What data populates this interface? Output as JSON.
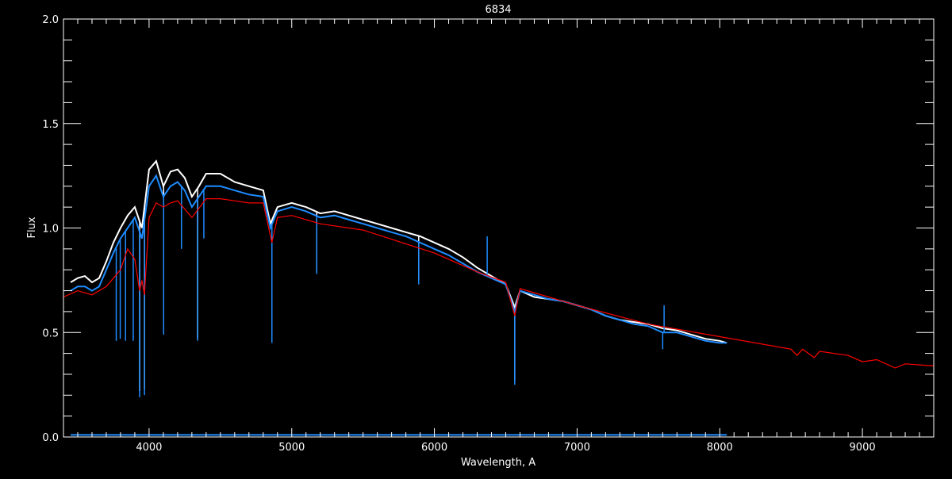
{
  "chart_data": {
    "type": "line",
    "title": "6834",
    "xlabel": "Wavelength, A",
    "ylabel": "Flux",
    "xlim": [
      3400,
      9500
    ],
    "ylim": [
      0.0,
      2.0
    ],
    "x_ticks": [
      4000,
      5000,
      6000,
      7000,
      8000,
      9000
    ],
    "x_tick_labels": [
      "4000",
      "5000",
      "6000",
      "7000",
      "8000",
      "9000"
    ],
    "y_ticks": [
      0.0,
      0.5,
      1.0,
      1.5,
      2.0
    ],
    "y_tick_labels": [
      "0.0",
      "0.5",
      "1.0",
      "1.5",
      "2.0"
    ],
    "grid": false,
    "background": "#000000",
    "series": [
      {
        "color": "#ffffff",
        "points": [
          [
            3450,
            0.74
          ],
          [
            3500,
            0.76
          ],
          [
            3550,
            0.77
          ],
          [
            3600,
            0.74
          ],
          [
            3650,
            0.76
          ],
          [
            3700,
            0.84
          ],
          [
            3750,
            0.93
          ],
          [
            3800,
            1.0
          ],
          [
            3850,
            1.06
          ],
          [
            3900,
            1.1
          ],
          [
            3950,
            1.0
          ],
          [
            4000,
            1.28
          ],
          [
            4050,
            1.32
          ],
          [
            4100,
            1.2
          ],
          [
            4150,
            1.27
          ],
          [
            4200,
            1.28
          ],
          [
            4250,
            1.24
          ],
          [
            4300,
            1.15
          ],
          [
            4350,
            1.2
          ],
          [
            4400,
            1.26
          ],
          [
            4450,
            1.26
          ],
          [
            4500,
            1.26
          ],
          [
            4600,
            1.22
          ],
          [
            4700,
            1.2
          ],
          [
            4800,
            1.18
          ],
          [
            4850,
            1.02
          ],
          [
            4900,
            1.1
          ],
          [
            5000,
            1.12
          ],
          [
            5100,
            1.1
          ],
          [
            5200,
            1.07
          ],
          [
            5300,
            1.08
          ],
          [
            5400,
            1.06
          ],
          [
            5500,
            1.04
          ],
          [
            5600,
            1.02
          ],
          [
            5700,
            1.0
          ],
          [
            5800,
            0.98
          ],
          [
            5900,
            0.96
          ],
          [
            6000,
            0.93
          ],
          [
            6100,
            0.9
          ],
          [
            6200,
            0.86
          ],
          [
            6300,
            0.81
          ],
          [
            6400,
            0.77
          ],
          [
            6500,
            0.73
          ],
          [
            6563,
            0.62
          ],
          [
            6600,
            0.7
          ],
          [
            6700,
            0.67
          ],
          [
            6800,
            0.66
          ],
          [
            6900,
            0.65
          ],
          [
            7000,
            0.63
          ],
          [
            7100,
            0.61
          ],
          [
            7200,
            0.58
          ],
          [
            7300,
            0.56
          ],
          [
            7400,
            0.55
          ],
          [
            7500,
            0.54
          ],
          [
            7600,
            0.52
          ],
          [
            7700,
            0.51
          ],
          [
            7800,
            0.49
          ],
          [
            7900,
            0.47
          ],
          [
            8000,
            0.46
          ],
          [
            8050,
            0.45
          ]
        ],
        "lines": [
          [
            3934,
            0.22
          ],
          [
            3968,
            0.23
          ],
          [
            4102,
            0.5
          ],
          [
            4340,
            0.47
          ],
          [
            4861,
            0.46
          ],
          [
            6563,
            0.27
          ],
          [
            5175,
            0.79
          ],
          [
            5890,
            0.75
          ]
        ]
      },
      {
        "color": "#1e8cff",
        "points": [
          [
            3450,
            0.7
          ],
          [
            3500,
            0.72
          ],
          [
            3550,
            0.72
          ],
          [
            3600,
            0.7
          ],
          [
            3650,
            0.72
          ],
          [
            3700,
            0.8
          ],
          [
            3750,
            0.88
          ],
          [
            3800,
            0.95
          ],
          [
            3850,
            1.0
          ],
          [
            3900,
            1.05
          ],
          [
            3950,
            0.95
          ],
          [
            4000,
            1.2
          ],
          [
            4050,
            1.25
          ],
          [
            4100,
            1.15
          ],
          [
            4150,
            1.2
          ],
          [
            4200,
            1.22
          ],
          [
            4250,
            1.18
          ],
          [
            4300,
            1.1
          ],
          [
            4350,
            1.15
          ],
          [
            4400,
            1.2
          ],
          [
            4450,
            1.2
          ],
          [
            4500,
            1.2
          ],
          [
            4600,
            1.18
          ],
          [
            4700,
            1.16
          ],
          [
            4800,
            1.15
          ],
          [
            4850,
            1.0
          ],
          [
            4900,
            1.08
          ],
          [
            5000,
            1.1
          ],
          [
            5100,
            1.08
          ],
          [
            5200,
            1.05
          ],
          [
            5300,
            1.06
          ],
          [
            5400,
            1.04
          ],
          [
            5500,
            1.02
          ],
          [
            5600,
            1.0
          ],
          [
            5700,
            0.98
          ],
          [
            5800,
            0.96
          ],
          [
            5900,
            0.93
          ],
          [
            6000,
            0.9
          ],
          [
            6100,
            0.87
          ],
          [
            6200,
            0.83
          ],
          [
            6300,
            0.79
          ],
          [
            6400,
            0.76
          ],
          [
            6500,
            0.73
          ],
          [
            6563,
            0.6
          ],
          [
            6600,
            0.7
          ],
          [
            6700,
            0.68
          ],
          [
            6800,
            0.66
          ],
          [
            6900,
            0.65
          ],
          [
            7000,
            0.63
          ],
          [
            7100,
            0.61
          ],
          [
            7200,
            0.58
          ],
          [
            7300,
            0.56
          ],
          [
            7400,
            0.54
          ],
          [
            7500,
            0.53
          ],
          [
            7600,
            0.5
          ],
          [
            7700,
            0.5
          ],
          [
            7800,
            0.48
          ],
          [
            7900,
            0.46
          ],
          [
            8000,
            0.45
          ],
          [
            8050,
            0.45
          ]
        ],
        "lines": [
          [
            3770,
            0.46
          ],
          [
            3798,
            0.47
          ],
          [
            3835,
            0.46
          ],
          [
            3889,
            0.46
          ],
          [
            3934,
            0.19
          ],
          [
            3968,
            0.2
          ],
          [
            4102,
            0.49
          ],
          [
            4227,
            0.9
          ],
          [
            4340,
            0.46
          ],
          [
            4384,
            0.95
          ],
          [
            4861,
            0.45
          ],
          [
            5175,
            0.78
          ],
          [
            5890,
            0.73
          ],
          [
            6563,
            0.25
          ],
          [
            7600,
            0.42
          ]
        ],
        "spikes": [
          [
            6370,
            0.96
          ],
          [
            7610,
            0.63
          ]
        ]
      },
      {
        "color": "#ff0000",
        "points": [
          [
            3400,
            0.67
          ],
          [
            3500,
            0.7
          ],
          [
            3600,
            0.68
          ],
          [
            3700,
            0.72
          ],
          [
            3800,
            0.8
          ],
          [
            3850,
            0.9
          ],
          [
            3900,
            0.85
          ],
          [
            3934,
            0.7
          ],
          [
            3950,
            0.75
          ],
          [
            3968,
            0.68
          ],
          [
            4000,
            1.05
          ],
          [
            4050,
            1.12
          ],
          [
            4100,
            1.1
          ],
          [
            4150,
            1.12
          ],
          [
            4200,
            1.13
          ],
          [
            4300,
            1.05
          ],
          [
            4400,
            1.14
          ],
          [
            4500,
            1.14
          ],
          [
            4600,
            1.13
          ],
          [
            4700,
            1.12
          ],
          [
            4800,
            1.12
          ],
          [
            4861,
            0.93
          ],
          [
            4900,
            1.05
          ],
          [
            5000,
            1.06
          ],
          [
            5200,
            1.02
          ],
          [
            5500,
            0.99
          ],
          [
            6000,
            0.88
          ],
          [
            6300,
            0.79
          ],
          [
            6500,
            0.74
          ],
          [
            6563,
            0.58
          ],
          [
            6600,
            0.71
          ],
          [
            7000,
            0.63
          ],
          [
            7500,
            0.54
          ],
          [
            8000,
            0.48
          ],
          [
            8500,
            0.42
          ],
          [
            8542,
            0.39
          ],
          [
            8580,
            0.42
          ],
          [
            8662,
            0.38
          ],
          [
            8700,
            0.41
          ],
          [
            8900,
            0.39
          ],
          [
            9000,
            0.36
          ],
          [
            9100,
            0.37
          ],
          [
            9230,
            0.33
          ],
          [
            9300,
            0.35
          ],
          [
            9500,
            0.34
          ]
        ]
      },
      {
        "color": "#1e8cff",
        "points": [
          [
            3450,
            0.01
          ],
          [
            8050,
            0.01
          ]
        ]
      }
    ]
  }
}
